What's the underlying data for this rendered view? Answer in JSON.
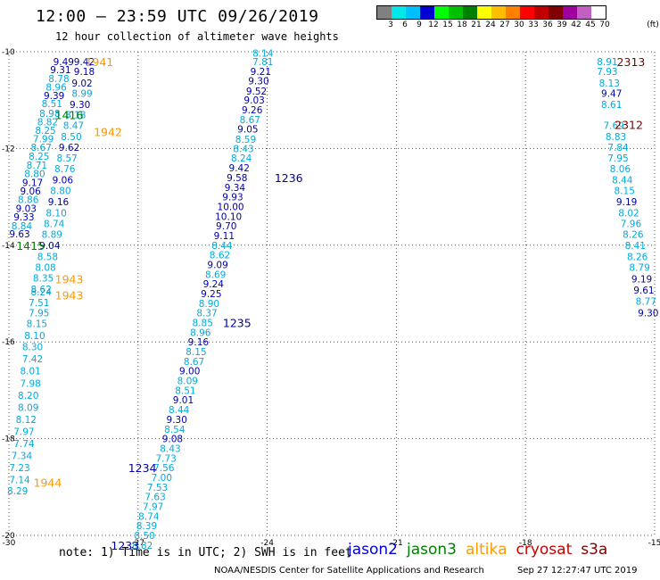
{
  "header": {
    "title": "12:00 – 23:59 UTC 09/26/2019",
    "subtitle": "12 hour collection of altimeter wave heights"
  },
  "color_scale": {
    "unit": "(ft)",
    "labels": [
      "3",
      "6",
      "9",
      "12",
      "15",
      "18",
      "21",
      "24",
      "27",
      "30",
      "33",
      "36",
      "39",
      "42",
      "45",
      "70"
    ],
    "colors": [
      "#808080",
      "#00e8e8",
      "#00bfff",
      "#0000d0",
      "#00ff00",
      "#00c000",
      "#008000",
      "#ffff00",
      "#ffbf00",
      "#ff8000",
      "#ff0000",
      "#c00000",
      "#800000",
      "#a000a0",
      "#c060c0",
      "#ffffff"
    ]
  },
  "map": {
    "lon_labels": [
      "-30",
      "-27",
      "-24",
      "-21",
      "-18",
      "-15"
    ],
    "lat_labels": [
      "-10",
      "-12",
      "-14",
      "-16",
      "-18",
      "-20"
    ],
    "lon_range": [
      -30,
      -15
    ],
    "lat_range": [
      -20,
      -10
    ],
    "grid": "dotted"
  },
  "swath_colors": {
    "light": "#00aadd",
    "dark": "#0000aa",
    "jason3": "#008000",
    "altika": "#ff9900",
    "cryosat": "#800000"
  },
  "tracks": [
    {
      "id": "A",
      "values": [
        {
          "v": "9.49",
          "c": "dark",
          "lon": -28.73,
          "lat": -10.2
        },
        {
          "v": "9.31",
          "c": "dark",
          "lon": -28.8,
          "lat": -10.37
        },
        {
          "v": "8.78",
          "c": "light",
          "lon": -28.84,
          "lat": -10.55
        },
        {
          "v": "8.96",
          "c": "light",
          "lon": -28.9,
          "lat": -10.73
        },
        {
          "v": "9.39",
          "c": "dark",
          "lon": -28.95,
          "lat": -10.9
        },
        {
          "v": "8.51",
          "c": "light",
          "lon": -29.0,
          "lat": -11.07
        },
        {
          "v": "8.98",
          "c": "light",
          "lon": -29.05,
          "lat": -11.27
        },
        {
          "v": "8.82",
          "c": "light",
          "lon": -29.1,
          "lat": -11.45
        },
        {
          "v": "8.25",
          "c": "light",
          "lon": -29.15,
          "lat": -11.62
        },
        {
          "v": "7.99",
          "c": "light",
          "lon": -29.2,
          "lat": -11.8
        },
        {
          "v": "8.67",
          "c": "light",
          "lon": -29.25,
          "lat": -11.97
        },
        {
          "v": "8.25",
          "c": "light",
          "lon": -29.3,
          "lat": -12.16
        },
        {
          "v": "8.71",
          "c": "light",
          "lon": -29.35,
          "lat": -12.34
        },
        {
          "v": "8.80",
          "c": "light",
          "lon": -29.4,
          "lat": -12.52
        },
        {
          "v": "9.17",
          "c": "dark",
          "lon": -29.45,
          "lat": -12.7
        },
        {
          "v": "9.06",
          "c": "dark",
          "lon": -29.5,
          "lat": -12.88
        },
        {
          "v": "8.86",
          "c": "light",
          "lon": -29.55,
          "lat": -13.05
        },
        {
          "v": "9.03",
          "c": "dark",
          "lon": -29.6,
          "lat": -13.24
        },
        {
          "v": "9.33",
          "c": "dark",
          "lon": -29.65,
          "lat": -13.41
        },
        {
          "v": "8.84",
          "c": "light",
          "lon": -29.7,
          "lat": -13.6
        },
        {
          "v": "9.63",
          "c": "dark",
          "lon": -29.75,
          "lat": -13.76
        }
      ]
    },
    {
      "id": "B",
      "values": [
        {
          "v": "9.42",
          "c": "dark",
          "lon": -28.25,
          "lat": -10.2
        },
        {
          "v": "9.18",
          "c": "dark",
          "lon": -28.25,
          "lat": -10.41
        },
        {
          "v": "9.02",
          "c": "dark",
          "lon": -28.3,
          "lat": -10.65
        },
        {
          "v": "8.99",
          "c": "light",
          "lon": -28.3,
          "lat": -10.86
        },
        {
          "v": "9.30",
          "c": "dark",
          "lon": -28.35,
          "lat": -11.09
        },
        {
          "v": "8.18",
          "c": "light",
          "lon": -28.45,
          "lat": -11.3
        },
        {
          "v": "8.47",
          "c": "light",
          "lon": -28.5,
          "lat": -11.52
        },
        {
          "v": "8.50",
          "c": "light",
          "lon": -28.55,
          "lat": -11.75
        },
        {
          "v": "9.62",
          "c": "dark",
          "lon": -28.6,
          "lat": -11.97
        },
        {
          "v": "8.57",
          "c": "light",
          "lon": -28.65,
          "lat": -12.2
        },
        {
          "v": "8.76",
          "c": "light",
          "lon": -28.7,
          "lat": -12.42
        },
        {
          "v": "9.06",
          "c": "dark",
          "lon": -28.75,
          "lat": -12.65
        },
        {
          "v": "8.80",
          "c": "light",
          "lon": -28.8,
          "lat": -12.87
        },
        {
          "v": "9.16",
          "c": "dark",
          "lon": -28.85,
          "lat": -13.1
        },
        {
          "v": "8.10",
          "c": "light",
          "lon": -28.9,
          "lat": -13.33
        },
        {
          "v": "8.74",
          "c": "light",
          "lon": -28.95,
          "lat": -13.55
        },
        {
          "v": "8.89",
          "c": "light",
          "lon": -29.0,
          "lat": -13.77
        },
        {
          "v": "9.04",
          "c": "dark",
          "lon": -29.05,
          "lat": -14.0
        },
        {
          "v": "8.58",
          "c": "light",
          "lon": -29.1,
          "lat": -14.23
        },
        {
          "v": "8.08",
          "c": "light",
          "lon": -29.15,
          "lat": -14.46
        },
        {
          "v": "8.35",
          "c": "light",
          "lon": -29.2,
          "lat": -14.68
        },
        {
          "v": "8.62",
          "c": "light",
          "lon": -29.25,
          "lat": -14.91
        },
        {
          "v": "8.24",
          "c": "light",
          "lon": -29.25,
          "lat": -14.96
        },
        {
          "v": "7.51",
          "c": "light",
          "lon": -29.3,
          "lat": -15.18
        },
        {
          "v": "7.95",
          "c": "light",
          "lon": -29.3,
          "lat": -15.4
        },
        {
          "v": "8.15",
          "c": "light",
          "lon": -29.35,
          "lat": -15.62
        },
        {
          "v": "8.10",
          "c": "light",
          "lon": -29.4,
          "lat": -15.87
        },
        {
          "v": "8.30",
          "c": "light",
          "lon": -29.45,
          "lat": -16.1
        },
        {
          "v": "7.42",
          "c": "light",
          "lon": -29.45,
          "lat": -16.35
        },
        {
          "v": "8.01",
          "c": "light",
          "lon": -29.5,
          "lat": -16.6
        },
        {
          "v": "7.98",
          "c": "light",
          "lon": -29.5,
          "lat": -16.85
        },
        {
          "v": "8.20",
          "c": "light",
          "lon": -29.55,
          "lat": -17.1
        },
        {
          "v": "8.09",
          "c": "light",
          "lon": -29.55,
          "lat": -17.35
        },
        {
          "v": "8.12",
          "c": "light",
          "lon": -29.6,
          "lat": -17.6
        },
        {
          "v": "7.97",
          "c": "light",
          "lon": -29.65,
          "lat": -17.85
        },
        {
          "v": "7.74",
          "c": "light",
          "lon": -29.65,
          "lat": -18.1
        },
        {
          "v": "7.34",
          "c": "light",
          "lon": -29.7,
          "lat": -18.35
        },
        {
          "v": "7.23",
          "c": "light",
          "lon": -29.75,
          "lat": -18.6
        },
        {
          "v": "7.14",
          "c": "light",
          "lon": -29.75,
          "lat": -18.85
        },
        {
          "v": "8.29",
          "c": "light",
          "lon": -29.8,
          "lat": -19.08
        }
      ]
    },
    {
      "id": "C",
      "values": [
        {
          "v": "8.14",
          "c": "light",
          "lon": -24.1,
          "lat": -10.03
        },
        {
          "v": "7.81",
          "c": "light",
          "lon": -24.1,
          "lat": -10.2
        },
        {
          "v": "9.21",
          "c": "dark",
          "lon": -24.15,
          "lat": -10.41
        },
        {
          "v": "9.30",
          "c": "dark",
          "lon": -24.2,
          "lat": -10.6
        },
        {
          "v": "9.52",
          "c": "dark",
          "lon": -24.25,
          "lat": -10.81
        },
        {
          "v": "9.03",
          "c": "dark",
          "lon": -24.3,
          "lat": -11.0
        },
        {
          "v": "9.26",
          "c": "dark",
          "lon": -24.35,
          "lat": -11.2
        },
        {
          "v": "8.67",
          "c": "light",
          "lon": -24.4,
          "lat": -11.4
        },
        {
          "v": "9.05",
          "c": "dark",
          "lon": -24.45,
          "lat": -11.6
        },
        {
          "v": "8.59",
          "c": "light",
          "lon": -24.5,
          "lat": -11.81
        },
        {
          "v": "8.43",
          "c": "light",
          "lon": -24.55,
          "lat": -12.0
        },
        {
          "v": "8.24",
          "c": "light",
          "lon": -24.6,
          "lat": -12.2
        },
        {
          "v": "9.42",
          "c": "dark",
          "lon": -24.65,
          "lat": -12.4
        },
        {
          "v": "9.58",
          "c": "dark",
          "lon": -24.7,
          "lat": -12.6
        },
        {
          "v": "9.34",
          "c": "dark",
          "lon": -24.75,
          "lat": -12.8
        },
        {
          "v": "9.93",
          "c": "dark",
          "lon": -24.8,
          "lat": -13.0
        },
        {
          "v": "10.00",
          "c": "dark",
          "lon": -24.85,
          "lat": -13.2
        },
        {
          "v": "10.10",
          "c": "dark",
          "lon": -24.9,
          "lat": -13.4
        },
        {
          "v": "9.70",
          "c": "dark",
          "lon": -24.95,
          "lat": -13.6
        },
        {
          "v": "9.11",
          "c": "dark",
          "lon": -25.0,
          "lat": -13.8
        },
        {
          "v": "8.44",
          "c": "light",
          "lon": -25.05,
          "lat": -14.0
        },
        {
          "v": "8.62",
          "c": "light",
          "lon": -25.1,
          "lat": -14.2
        },
        {
          "v": "9.09",
          "c": "dark",
          "lon": -25.15,
          "lat": -14.4
        },
        {
          "v": "8.69",
          "c": "light",
          "lon": -25.2,
          "lat": -14.6
        },
        {
          "v": "9.24",
          "c": "dark",
          "lon": -25.25,
          "lat": -14.8
        },
        {
          "v": "9.25",
          "c": "dark",
          "lon": -25.3,
          "lat": -15.0
        },
        {
          "v": "8.90",
          "c": "light",
          "lon": -25.35,
          "lat": -15.2
        },
        {
          "v": "8.37",
          "c": "light",
          "lon": -25.4,
          "lat": -15.4
        },
        {
          "v": "8.85",
          "c": "light",
          "lon": -25.5,
          "lat": -15.6
        },
        {
          "v": "8.96",
          "c": "light",
          "lon": -25.55,
          "lat": -15.8
        },
        {
          "v": "9.16",
          "c": "dark",
          "lon": -25.6,
          "lat": -16.0
        },
        {
          "v": "8.15",
          "c": "light",
          "lon": -25.65,
          "lat": -16.2
        },
        {
          "v": "8.67",
          "c": "light",
          "lon": -25.7,
          "lat": -16.4
        },
        {
          "v": "9.00",
          "c": "dark",
          "lon": -25.8,
          "lat": -16.6
        },
        {
          "v": "8.09",
          "c": "light",
          "lon": -25.85,
          "lat": -16.8
        },
        {
          "v": "8.51",
          "c": "light",
          "lon": -25.9,
          "lat": -17.0
        },
        {
          "v": "9.01",
          "c": "dark",
          "lon": -25.95,
          "lat": -17.2
        },
        {
          "v": "8.44",
          "c": "light",
          "lon": -26.05,
          "lat": -17.4
        },
        {
          "v": "9.30",
          "c": "dark",
          "lon": -26.1,
          "lat": -17.6
        },
        {
          "v": "8.54",
          "c": "light",
          "lon": -26.15,
          "lat": -17.8
        },
        {
          "v": "9.08",
          "c": "dark",
          "lon": -26.2,
          "lat": -18.0
        },
        {
          "v": "8.43",
          "c": "light",
          "lon": -26.25,
          "lat": -18.2
        },
        {
          "v": "7.73",
          "c": "light",
          "lon": -26.35,
          "lat": -18.4
        },
        {
          "v": "7.56",
          "c": "light",
          "lon": -26.4,
          "lat": -18.6
        },
        {
          "v": "7.00",
          "c": "light",
          "lon": -26.45,
          "lat": -18.8
        },
        {
          "v": "7.53",
          "c": "light",
          "lon": -26.55,
          "lat": -19.0
        },
        {
          "v": "7.63",
          "c": "light",
          "lon": -26.6,
          "lat": -19.2
        },
        {
          "v": "7.97",
          "c": "light",
          "lon": -26.65,
          "lat": -19.4
        },
        {
          "v": "8.74",
          "c": "light",
          "lon": -26.75,
          "lat": -19.6
        },
        {
          "v": "8.39",
          "c": "light",
          "lon": -26.8,
          "lat": -19.8
        },
        {
          "v": "8.50",
          "c": "light",
          "lon": -26.85,
          "lat": -20.0
        },
        {
          "v": "8.82",
          "c": "light",
          "lon": -26.9,
          "lat": -20.2
        }
      ]
    },
    {
      "id": "D",
      "values": [
        {
          "v": "8.91",
          "c": "light",
          "lon": -16.1,
          "lat": -10.2
        },
        {
          "v": "7.93",
          "c": "light",
          "lon": -16.1,
          "lat": -10.41
        },
        {
          "v": "8.13",
          "c": "light",
          "lon": -16.05,
          "lat": -10.65
        },
        {
          "v": "9.47",
          "c": "dark",
          "lon": -16.0,
          "lat": -10.86
        },
        {
          "v": "8.61",
          "c": "light",
          "lon": -16.0,
          "lat": -11.09
        },
        {
          "v": "7.69",
          "c": "light",
          "lon": -15.95,
          "lat": -11.52
        },
        {
          "v": "8.83",
          "c": "light",
          "lon": -15.9,
          "lat": -11.75
        },
        {
          "v": "7.84",
          "c": "light",
          "lon": -15.85,
          "lat": -11.97
        },
        {
          "v": "7.95",
          "c": "light",
          "lon": -15.85,
          "lat": -12.2
        },
        {
          "v": "8.06",
          "c": "light",
          "lon": -15.8,
          "lat": -12.42
        },
        {
          "v": "8.44",
          "c": "light",
          "lon": -15.75,
          "lat": -12.65
        },
        {
          "v": "8.15",
          "c": "light",
          "lon": -15.7,
          "lat": -12.87
        },
        {
          "v": "9.19",
          "c": "dark",
          "lon": -15.65,
          "lat": -13.1
        },
        {
          "v": "8.02",
          "c": "light",
          "lon": -15.6,
          "lat": -13.33
        },
        {
          "v": "7.96",
          "c": "light",
          "lon": -15.55,
          "lat": -13.55
        },
        {
          "v": "8.26",
          "c": "light",
          "lon": -15.5,
          "lat": -13.77
        },
        {
          "v": "8.41",
          "c": "light",
          "lon": -15.45,
          "lat": -14.0
        },
        {
          "v": "8.26",
          "c": "light",
          "lon": -15.4,
          "lat": -14.23
        },
        {
          "v": "8.79",
          "c": "light",
          "lon": -15.35,
          "lat": -14.46
        },
        {
          "v": "9.19",
          "c": "dark",
          "lon": -15.3,
          "lat": -14.7
        },
        {
          "v": "9.61",
          "c": "dark",
          "lon": -15.25,
          "lat": -14.93
        },
        {
          "v": "8.77",
          "c": "light",
          "lon": -15.2,
          "lat": -15.16
        },
        {
          "v": "9.30",
          "c": "dark",
          "lon": -15.15,
          "lat": -15.4
        }
      ]
    }
  ],
  "time_labels": [
    {
      "t": "1941",
      "c": "altika",
      "lon": -27.9,
      "lat": -10.2
    },
    {
      "t": "1416",
      "c": "jason3",
      "lon": -28.6,
      "lat": -11.3
    },
    {
      "t": "1942",
      "c": "altika",
      "lon": -27.7,
      "lat": -11.65
    },
    {
      "t": "1236",
      "c": "dark",
      "lon": -23.5,
      "lat": -12.6
    },
    {
      "t": "1415",
      "c": "jason3",
      "lon": -29.5,
      "lat": -14.0
    },
    {
      "t": "1943",
      "c": "altika",
      "lon": -28.6,
      "lat": -14.7
    },
    {
      "t": "1943",
      "c": "altika",
      "lon": -28.6,
      "lat": -15.03
    },
    {
      "t": "1235",
      "c": "dark",
      "lon": -24.7,
      "lat": -15.6
    },
    {
      "t": "1234",
      "c": "dark",
      "lon": -26.9,
      "lat": -18.6
    },
    {
      "t": "1944",
      "c": "altika",
      "lon": -29.1,
      "lat": -18.9
    },
    {
      "t": "1233",
      "c": "dark",
      "lon": -27.3,
      "lat": -20.2
    },
    {
      "t": "2313",
      "c": "cryosat",
      "lon": -15.55,
      "lat": -10.2
    },
    {
      "t": "2312",
      "c": "cryosat",
      "lon": -15.6,
      "lat": -11.5
    }
  ],
  "footer": {
    "note": "note: 1) Time is in UTC; 2) SWH is in feet",
    "legend": [
      {
        "name": "jason2",
        "color": "#0000dd"
      },
      {
        "name": "jason3",
        "color": "#008000"
      },
      {
        "name": "altika",
        "color": "#ff9900"
      },
      {
        "name": "cryosat",
        "color": "#cc0000"
      },
      {
        "name": "s3a",
        "color": "#800000"
      }
    ],
    "credit": "NOAA/NESDIS Center for Satellite Applications and Research",
    "timestamp": "Sep 27 12:27:47 UTC 2019"
  }
}
